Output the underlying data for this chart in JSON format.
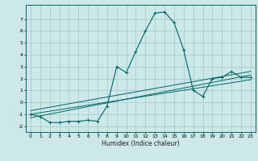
{
  "title": "",
  "xlabel": "Humidex (Indice chaleur)",
  "ylabel": "",
  "background_color": "#cce8e8",
  "grid_color": "#aacccc",
  "line_color": "#006666",
  "xlim": [
    -0.5,
    23.5
  ],
  "ylim": [
    -2.5,
    8.2
  ],
  "yticks": [
    -2,
    -1,
    0,
    1,
    2,
    3,
    4,
    5,
    6,
    7
  ],
  "xticks": [
    0,
    1,
    2,
    3,
    4,
    5,
    6,
    7,
    8,
    9,
    10,
    11,
    12,
    13,
    14,
    15,
    16,
    17,
    18,
    19,
    20,
    21,
    22,
    23
  ],
  "series1_x": [
    0,
    1,
    2,
    3,
    4,
    5,
    6,
    7,
    8,
    9,
    10,
    11,
    12,
    13,
    14,
    15,
    16,
    17,
    18,
    19,
    20,
    21,
    22,
    23
  ],
  "series1_y": [
    -1.0,
    -1.2,
    -1.7,
    -1.7,
    -1.6,
    -1.6,
    -1.5,
    -1.6,
    -0.3,
    3.0,
    2.5,
    4.3,
    6.0,
    7.5,
    7.6,
    6.7,
    4.4,
    1.0,
    0.5,
    2.0,
    2.1,
    2.6,
    2.1,
    2.1
  ],
  "series2_x": [
    0,
    23
  ],
  "series2_y": [
    -1.3,
    2.3
  ],
  "series3_x": [
    0,
    23
  ],
  "series3_y": [
    -1.0,
    1.9
  ],
  "series4_x": [
    0,
    23
  ],
  "series4_y": [
    -0.7,
    2.6
  ]
}
